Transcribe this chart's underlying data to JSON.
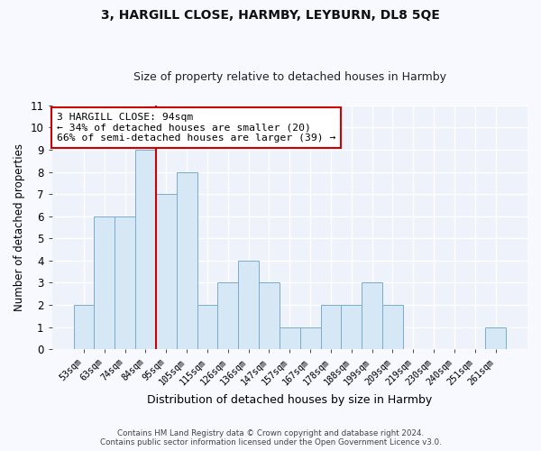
{
  "title": "3, HARGILL CLOSE, HARMBY, LEYBURN, DL8 5QE",
  "subtitle": "Size of property relative to detached houses in Harmby",
  "xlabel": "Distribution of detached houses by size in Harmby",
  "ylabel": "Number of detached properties",
  "bar_color": "#d6e8f5",
  "bar_edge_color": "#7aaccc",
  "background_color": "#eef2fa",
  "grid_color": "#ffffff",
  "categories": [
    "53sqm",
    "63sqm",
    "74sqm",
    "84sqm",
    "95sqm",
    "105sqm",
    "115sqm",
    "126sqm",
    "136sqm",
    "147sqm",
    "157sqm",
    "167sqm",
    "178sqm",
    "188sqm",
    "199sqm",
    "209sqm",
    "219sqm",
    "230sqm",
    "240sqm",
    "251sqm",
    "261sqm"
  ],
  "values": [
    2,
    6,
    6,
    9,
    7,
    8,
    2,
    3,
    4,
    3,
    1,
    1,
    2,
    2,
    3,
    2,
    0,
    0,
    0,
    0,
    1
  ],
  "ylim": [
    0,
    11
  ],
  "yticks": [
    0,
    1,
    2,
    3,
    4,
    5,
    6,
    7,
    8,
    9,
    10,
    11
  ],
  "vline_x": 3.5,
  "vline_color": "#cc0000",
  "annotation_text": "3 HARGILL CLOSE: 94sqm\n← 34% of detached houses are smaller (20)\n66% of semi-detached houses are larger (39) →",
  "annotation_box_color": "#ffffff",
  "annotation_box_edge": "#cc0000",
  "footer_line1": "Contains HM Land Registry data © Crown copyright and database right 2024.",
  "footer_line2": "Contains public sector information licensed under the Open Government Licence v3.0.",
  "fig_width": 6.0,
  "fig_height": 5.0,
  "fig_bg": "#f8f9ff"
}
